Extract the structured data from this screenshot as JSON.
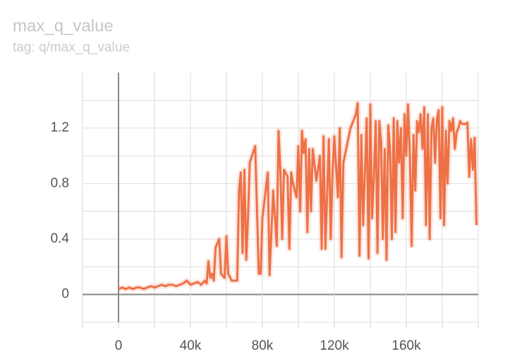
{
  "chart_data": {
    "type": "line",
    "title": "max_q_value",
    "subtitle": "tag: q/max_q_value",
    "color": "#ee7146",
    "grid": true,
    "xlim": [
      -20000,
      200000
    ],
    "ylim": [
      -0.2,
      1.6
    ],
    "xticks": [
      0,
      {
        "value": 40000,
        "label": "40k"
      },
      {
        "value": 80000,
        "label": "80k"
      },
      {
        "value": 120000,
        "label": "120k"
      },
      {
        "value": 160000,
        "label": "160k"
      }
    ],
    "x_minor_ticks": [
      -20000,
      20000,
      60000,
      100000,
      140000,
      180000,
      200000
    ],
    "yticks": [
      0,
      0.4,
      0.8,
      1.2
    ],
    "y_minor_ticks": [
      -0.2,
      0.2,
      0.6,
      1.0,
      1.4
    ],
    "x": [
      0,
      2000,
      4000,
      6000,
      8000,
      10000,
      12000,
      14000,
      16000,
      18000,
      20000,
      22000,
      24000,
      26000,
      28000,
      30000,
      32000,
      34000,
      36000,
      38000,
      40000,
      42000,
      44000,
      46000,
      48000,
      49000,
      50000,
      51000,
      52000,
      53000,
      54000,
      56000,
      57000,
      59000,
      60000,
      61000,
      63000,
      65000,
      66000,
      67000,
      68000,
      69000,
      70000,
      71000,
      72000,
      73000,
      76000,
      78000,
      79000,
      80000,
      83000,
      84000,
      85000,
      86000,
      88000,
      89000,
      90000,
      91000,
      92000,
      94000,
      95000,
      96000,
      97000,
      99000,
      100000,
      101000,
      102000,
      103000,
      104000,
      105000,
      106000,
      107000,
      108000,
      110000,
      112000,
      113000,
      114000,
      115000,
      117000,
      118000,
      119000,
      120000,
      122000,
      123000,
      124000,
      125000,
      129000,
      132000,
      133000,
      134000,
      135000,
      136000,
      138000,
      139000,
      140000,
      141000,
      142000,
      143000,
      144000,
      145000,
      146000,
      147000,
      148000,
      149000,
      150000,
      151000,
      152000,
      153000,
      154000,
      155000,
      156000,
      157000,
      158000,
      159000,
      160000,
      161000,
      162000,
      163000,
      164000,
      165000,
      166000,
      167000,
      168000,
      169000,
      170000,
      171000,
      172000,
      173000,
      174000,
      175000,
      176000,
      177000,
      178000,
      179000,
      180000,
      181000,
      182000,
      183000,
      184000,
      185000,
      186000,
      187000,
      188000,
      189000,
      190000,
      191000,
      193000,
      194000,
      195000,
      196000,
      197000,
      198000,
      199000
    ],
    "values": [
      0.04,
      0.05,
      0.04,
      0.05,
      0.04,
      0.05,
      0.05,
      0.04,
      0.05,
      0.06,
      0.05,
      0.06,
      0.07,
      0.06,
      0.07,
      0.07,
      0.06,
      0.07,
      0.08,
      0.1,
      0.07,
      0.08,
      0.09,
      0.07,
      0.1,
      0.08,
      0.24,
      0.12,
      0.15,
      0.1,
      0.34,
      0.4,
      0.15,
      0.12,
      0.42,
      0.15,
      0.1,
      0.1,
      0.1,
      0.75,
      0.88,
      0.3,
      0.9,
      0.25,
      0.55,
      0.95,
      1.07,
      0.15,
      0.15,
      0.55,
      0.88,
      0.14,
      0.45,
      0.75,
      0.35,
      1.18,
      0.9,
      0.4,
      0.9,
      0.85,
      0.33,
      0.88,
      0.8,
      0.7,
      1.07,
      0.6,
      1.18,
      1.02,
      1.12,
      0.45,
      1.05,
      0.6,
      1.05,
      0.82,
      1.0,
      0.33,
      1.14,
      0.33,
      1.12,
      0.4,
      0.88,
      1.14,
      0.7,
      1.2,
      0.27,
      0.95,
      1.2,
      1.3,
      1.38,
      0.28,
      1.15,
      0.5,
      1.27,
      0.26,
      1.37,
      0.55,
      0.85,
      1.25,
      0.3,
      1.25,
      1.1,
      0.4,
      1.05,
      0.25,
      1.22,
      1.05,
      0.4,
      1.27,
      0.45,
      1.25,
      0.95,
      1.2,
      0.55,
      1.3,
      1.0,
      1.37,
      1.0,
      0.35,
      1.15,
      0.75,
      1.25,
      1.17,
      1.3,
      1.05,
      1.35,
      0.5,
      1.3,
      0.4,
      1.2,
      1.27,
      0.95,
      1.26,
      1.33,
      0.55,
      1.35,
      0.5,
      1.18,
      0.8,
      1.25,
      1.18,
      1.27,
      1.05,
      1.17,
      1.2,
      1.25,
      1.23,
      1.23,
      1.24,
      0.85,
      1.12,
      0.9,
      1.13,
      0.5
    ]
  }
}
